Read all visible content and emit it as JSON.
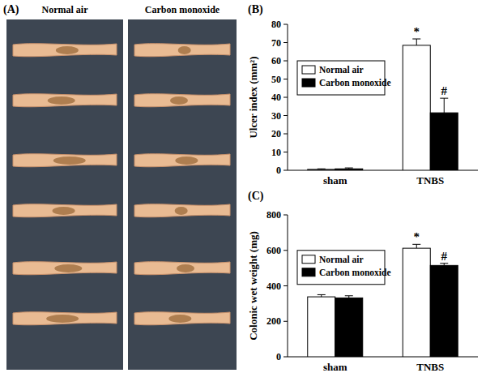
{
  "photo_panel": {
    "label": "(A)",
    "captions": [
      "Normal air",
      "Carbon monoxide"
    ]
  },
  "chart_data": [
    {
      "type": "bar",
      "title": "(B)",
      "y_label": "Ulcer index (mm²)",
      "categories": [
        "sham",
        "TNBS"
      ],
      "series": [
        {
          "name": "Normal air",
          "color": "#ffffff",
          "values": [
            0.5,
            68.5
          ],
          "errors": [
            0.3,
            3.5
          ],
          "annotations": [
            null,
            "*"
          ]
        },
        {
          "name": "Carbon monoxide",
          "color": "#000000",
          "values": [
            0.8,
            31.5
          ],
          "errors": [
            0.5,
            8
          ],
          "annotations": [
            null,
            "#"
          ]
        }
      ],
      "ylim": [
        0,
        80
      ],
      "yticks": [
        0,
        10,
        20,
        30,
        40,
        50,
        60,
        70,
        80
      ],
      "grid": false,
      "legend": "upper left"
    },
    {
      "type": "bar",
      "title": "(C)",
      "y_label": "Colonic wet weight (mg)",
      "categories": [
        "sham",
        "TNBS"
      ],
      "series": [
        {
          "name": "Normal air",
          "color": "#ffffff",
          "values": [
            338,
            612
          ],
          "errors": [
            12,
            22
          ],
          "annotations": [
            null,
            "*"
          ]
        },
        {
          "name": "Carbon monoxide",
          "color": "#000000",
          "values": [
            332,
            515
          ],
          "errors": [
            12,
            12
          ],
          "annotations": [
            null,
            "#"
          ]
        }
      ],
      "ylim": [
        0,
        800
      ],
      "yticks": [
        0,
        200,
        400,
        600,
        800
      ],
      "grid": false,
      "legend": "upper left"
    }
  ]
}
